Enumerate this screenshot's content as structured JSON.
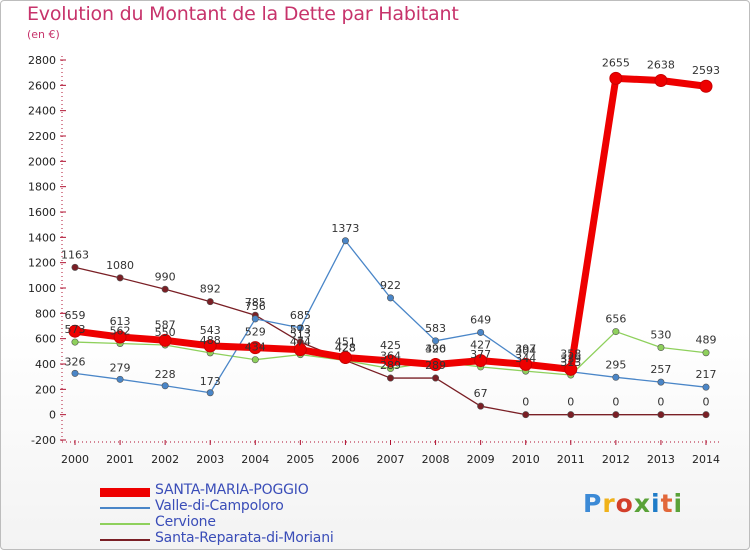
{
  "title": "Evolution du Montant de la Dette par Habitant",
  "subtitle": "(en €)",
  "logo": {
    "text": "Proxiti",
    "colors": [
      "#3c8ad6",
      "#f0b21a",
      "#d33f2a",
      "#5aa238",
      "#1f7cc8",
      "#e2683a",
      "#5aa238"
    ]
  },
  "chart_data": {
    "type": "line",
    "title": "Evolution du Montant de la Dette par Habitant",
    "subtitle": "(en €)",
    "xlabel": "",
    "ylabel": "",
    "x": [
      "2000",
      "2001",
      "2002",
      "2003",
      "2004",
      "2005",
      "2006",
      "2007",
      "2008",
      "2009",
      "2010",
      "2011",
      "2012",
      "2013",
      "2014"
    ],
    "ylim": [
      -200,
      2800
    ],
    "yticks": [
      -200,
      0,
      200,
      400,
      600,
      800,
      1000,
      1200,
      1400,
      1600,
      1800,
      2000,
      2200,
      2400,
      2600,
      2800
    ],
    "grid": false,
    "legend": "bottom-left",
    "series": [
      {
        "name": "SANTA-MARIA-POGGIO",
        "color": "#ee0000",
        "width": 7,
        "values": [
          659,
          613,
          587,
          543,
          529,
          513,
          451,
          425,
          396,
          427,
          397,
          358,
          2655,
          2638,
          2593
        ],
        "labels": [
          "659",
          "613",
          "587",
          "543",
          "529",
          "513",
          "451",
          "425",
          "396",
          "427",
          "397",
          "358",
          "2655",
          "2638",
          "2593"
        ]
      },
      {
        "name": "Valle-di-Campoloro",
        "color": "#4a86c8",
        "width": 1.3,
        "values": [
          326,
          279,
          228,
          173,
          756,
          685,
          1373,
          922,
          583,
          649,
          404,
          339,
          295,
          257,
          217
        ],
        "labels": [
          "326",
          "279",
          "228",
          "173",
          "756",
          "685",
          "1373",
          "922",
          "583",
          "649",
          "404",
          "339",
          "295",
          "257",
          "217"
        ]
      },
      {
        "name": "Cervione",
        "color": "#8ed05c",
        "width": 1.3,
        "values": [
          573,
          562,
          550,
          488,
          434,
          474,
          428,
          364,
          420,
          377,
          344,
          313,
          656,
          530,
          489
        ],
        "labels": [
          "573",
          "562",
          "550",
          "488",
          "434",
          "474",
          "428",
          "364",
          "420",
          "377",
          "344",
          "313",
          "656",
          "530",
          "489"
        ]
      },
      {
        "name": "Santa-Reparata-di-Moriani",
        "color": "#7a1f25",
        "width": 1.3,
        "values": [
          1163,
          1080,
          990,
          892,
          785,
          573,
          428,
          289,
          289,
          67,
          0,
          0,
          0,
          0,
          0
        ],
        "labels": [
          "1163",
          "1080",
          "990",
          "892",
          "785",
          "573",
          "428",
          "289",
          "289",
          "67",
          "0",
          "0",
          "0",
          "0",
          "0"
        ]
      }
    ]
  }
}
